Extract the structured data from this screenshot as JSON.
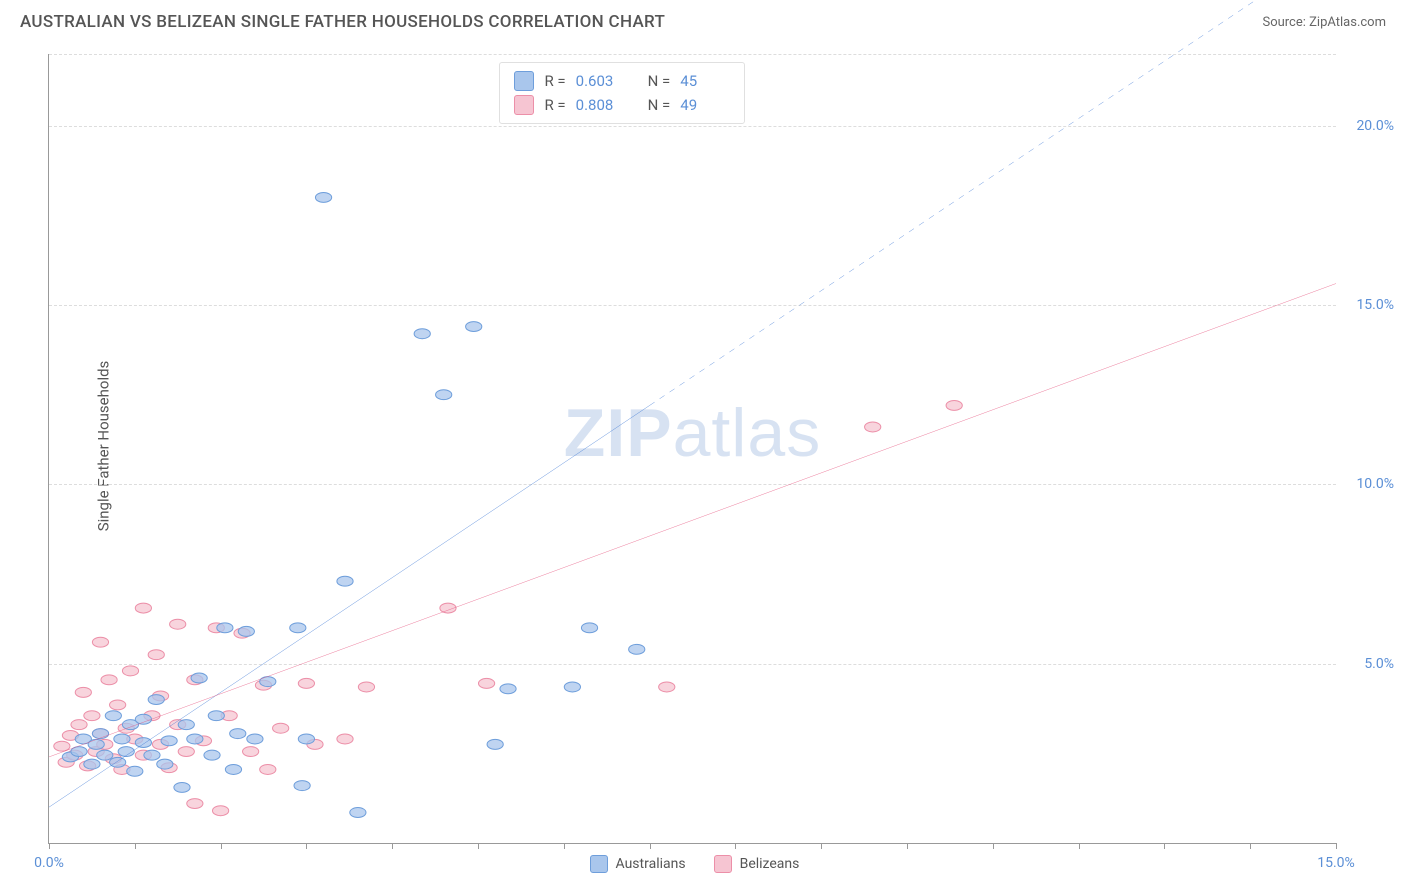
{
  "header": {
    "title": "AUSTRALIAN VS BELIZEAN SINGLE FATHER HOUSEHOLDS CORRELATION CHART",
    "source": "Source: ZipAtlas.com"
  },
  "y_axis": {
    "label": "Single Father Households"
  },
  "watermark": {
    "zip": "ZIP",
    "atlas": "atlas"
  },
  "chart": {
    "type": "scatter",
    "x_domain": [
      0,
      15
    ],
    "y_domain": [
      0,
      22
    ],
    "x_ticks_major": [
      0,
      15
    ],
    "x_ticks_minor": [
      1,
      2,
      3,
      4,
      5,
      6,
      7,
      8,
      9,
      10,
      11,
      12,
      13,
      14
    ],
    "y_gridlines": [
      5,
      10,
      15,
      20,
      22
    ],
    "y_tick_labels": [
      {
        "v": 5,
        "t": "5.0%"
      },
      {
        "v": 10,
        "t": "10.0%"
      },
      {
        "v": 15,
        "t": "15.0%"
      },
      {
        "v": 20,
        "t": "20.0%"
      }
    ],
    "x_tick_labels": [
      {
        "v": 0,
        "t": "0.0%"
      },
      {
        "v": 15,
        "t": "15.0%"
      }
    ],
    "series": {
      "blue": {
        "name": "Australians",
        "fill": "#a9c6ec",
        "stroke": "#6e9edb",
        "line_color": "#2b6bd1",
        "trend": {
          "x1": 0,
          "y1": 1.0,
          "x2": 7.0,
          "y2": 12.2,
          "dash_x2": 15.0,
          "dash_y2": 25.0
        },
        "points": [
          [
            0.25,
            2.4
          ],
          [
            0.35,
            2.55
          ],
          [
            0.4,
            2.9
          ],
          [
            0.5,
            2.2
          ],
          [
            0.55,
            2.75
          ],
          [
            0.6,
            3.05
          ],
          [
            0.65,
            2.45
          ],
          [
            0.75,
            3.55
          ],
          [
            0.8,
            2.25
          ],
          [
            0.85,
            2.9
          ],
          [
            0.9,
            2.55
          ],
          [
            0.95,
            3.3
          ],
          [
            1.0,
            2.0
          ],
          [
            1.1,
            2.8
          ],
          [
            1.1,
            3.45
          ],
          [
            1.2,
            2.45
          ],
          [
            1.25,
            4.0
          ],
          [
            1.35,
            2.2
          ],
          [
            1.4,
            2.85
          ],
          [
            1.55,
            1.55
          ],
          [
            1.6,
            3.3
          ],
          [
            1.7,
            2.9
          ],
          [
            1.75,
            4.6
          ],
          [
            1.9,
            2.45
          ],
          [
            1.95,
            3.55
          ],
          [
            2.05,
            6.0
          ],
          [
            2.15,
            2.05
          ],
          [
            2.2,
            3.05
          ],
          [
            2.3,
            5.9
          ],
          [
            2.4,
            2.9
          ],
          [
            2.55,
            4.5
          ],
          [
            2.9,
            6.0
          ],
          [
            2.95,
            1.6
          ],
          [
            3.0,
            2.9
          ],
          [
            3.2,
            18.0
          ],
          [
            3.45,
            7.3
          ],
          [
            3.6,
            0.85
          ],
          [
            4.35,
            14.2
          ],
          [
            4.6,
            12.5
          ],
          [
            4.95,
            14.4
          ],
          [
            5.2,
            2.75
          ],
          [
            5.35,
            4.3
          ],
          [
            6.1,
            4.35
          ],
          [
            6.3,
            6.0
          ],
          [
            6.85,
            5.4
          ]
        ]
      },
      "pink": {
        "name": "Belizeans",
        "fill": "#f6c5d2",
        "stroke": "#ec8fa8",
        "line_color": "#e44a77",
        "trend": {
          "x1": 0,
          "y1": 2.4,
          "x2": 15.0,
          "y2": 15.6
        },
        "points": [
          [
            0.15,
            2.7
          ],
          [
            0.2,
            2.25
          ],
          [
            0.25,
            3.0
          ],
          [
            0.3,
            2.45
          ],
          [
            0.35,
            3.3
          ],
          [
            0.4,
            4.2
          ],
          [
            0.45,
            2.15
          ],
          [
            0.5,
            3.55
          ],
          [
            0.55,
            2.55
          ],
          [
            0.6,
            3.05
          ],
          [
            0.6,
            5.6
          ],
          [
            0.65,
            2.75
          ],
          [
            0.7,
            4.55
          ],
          [
            0.75,
            2.35
          ],
          [
            0.8,
            3.85
          ],
          [
            0.85,
            2.05
          ],
          [
            0.9,
            3.2
          ],
          [
            0.95,
            4.8
          ],
          [
            1.0,
            2.9
          ],
          [
            1.1,
            6.55
          ],
          [
            1.1,
            2.45
          ],
          [
            1.2,
            3.55
          ],
          [
            1.25,
            5.25
          ],
          [
            1.3,
            2.75
          ],
          [
            1.3,
            4.1
          ],
          [
            1.4,
            2.1
          ],
          [
            1.5,
            6.1
          ],
          [
            1.5,
            3.3
          ],
          [
            1.6,
            2.55
          ],
          [
            1.7,
            4.55
          ],
          [
            1.7,
            1.1
          ],
          [
            1.8,
            2.85
          ],
          [
            1.95,
            6.0
          ],
          [
            2.0,
            0.9
          ],
          [
            2.1,
            3.55
          ],
          [
            2.25,
            5.85
          ],
          [
            2.35,
            2.55
          ],
          [
            2.5,
            4.4
          ],
          [
            2.55,
            2.05
          ],
          [
            2.7,
            3.2
          ],
          [
            3.0,
            4.45
          ],
          [
            3.1,
            2.75
          ],
          [
            3.45,
            2.9
          ],
          [
            3.7,
            4.35
          ],
          [
            4.65,
            6.55
          ],
          [
            5.1,
            4.45
          ],
          [
            7.2,
            4.35
          ],
          [
            9.6,
            11.6
          ],
          [
            10.55,
            12.2
          ]
        ]
      }
    }
  },
  "top_legend": [
    {
      "swatch_fill": "#a9c6ec",
      "swatch_stroke": "#6e9edb",
      "r": "0.603",
      "n": "45"
    },
    {
      "swatch_fill": "#f6c5d2",
      "swatch_stroke": "#ec8fa8",
      "r": "0.808",
      "n": "49"
    }
  ],
  "top_legend_labels": {
    "r": "R =",
    "n": "N ="
  },
  "bottom_legend": [
    {
      "swatch_fill": "#a9c6ec",
      "swatch_stroke": "#6e9edb",
      "label": "Australians"
    },
    {
      "swatch_fill": "#f6c5d2",
      "swatch_stroke": "#ec8fa8",
      "label": "Belizeans"
    }
  ],
  "style": {
    "marker_radius": 9,
    "marker_stroke_width": 1,
    "line_width": 2,
    "grid_color": "#dddddd",
    "axis_color": "#999999",
    "dash_pattern": "6,6"
  }
}
